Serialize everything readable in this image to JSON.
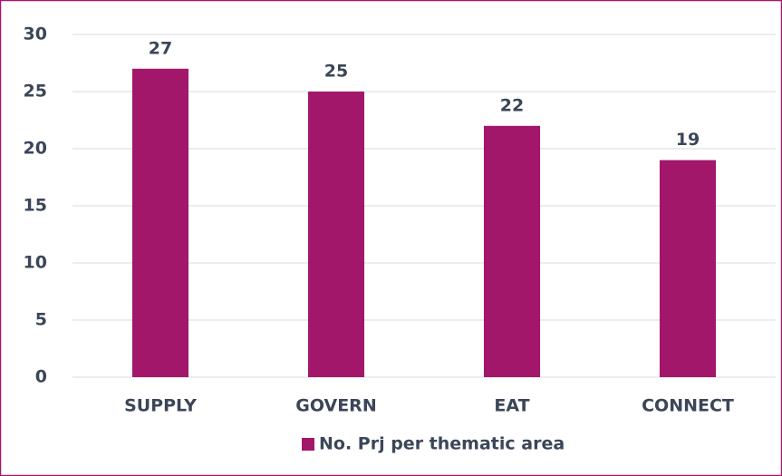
{
  "chart_data": {
    "type": "bar",
    "categories": [
      "SUPPLY",
      "GOVERN",
      "EAT",
      "CONNECT"
    ],
    "series": [
      {
        "name": "No. Prj per thematic area",
        "color": "#a3176b",
        "values": [
          27,
          25,
          22,
          19
        ]
      }
    ],
    "ylim": [
      0,
      30
    ],
    "yticks": [
      0,
      5,
      10,
      15,
      20,
      25,
      30
    ],
    "grid": true,
    "legend": "bottom"
  }
}
